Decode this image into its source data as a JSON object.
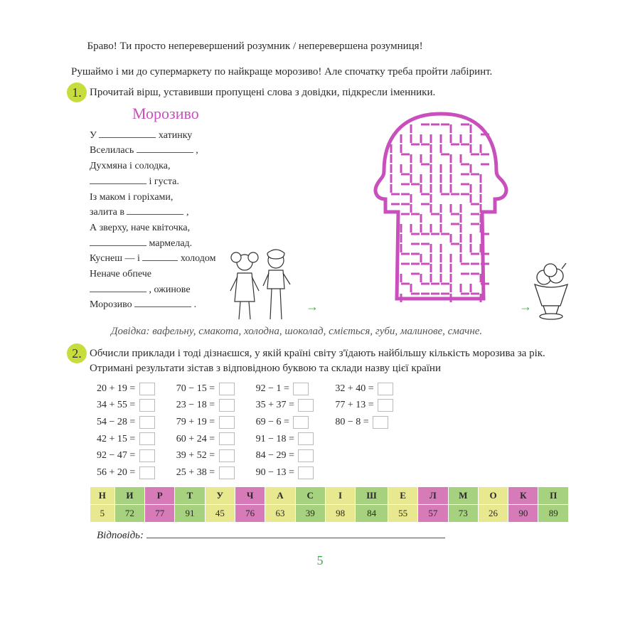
{
  "intro1": "Браво! Ти просто неперевершений розумник / неперевершена розумниця!",
  "intro2": "Рушаймо і ми до супермаркету по найкраще морозиво! Але спочатку треба пройти лабіринт.",
  "task1": {
    "num": "1.",
    "text": "Прочитай вірш, уставивши пропущені слова з довідки, підкресли іменники.",
    "title": "Морозиво",
    "lines": [
      {
        "pre": "У ",
        "blank": 80,
        "post": " хатинку"
      },
      {
        "pre": "Вселилась ",
        "blank": 80,
        "post": " ,"
      },
      {
        "pre": "Духмяна і солодка,",
        "blank": 0,
        "post": ""
      },
      {
        "pre": "",
        "blank": 80,
        "post": " і густа."
      },
      {
        "pre": "Із маком і горіхами,",
        "blank": 0,
        "post": ""
      },
      {
        "pre": "залита в ",
        "blank": 80,
        "post": " ,"
      },
      {
        "pre": "А зверху, наче квіточка,",
        "blank": 0,
        "post": ""
      },
      {
        "pre": "",
        "blank": 80,
        "post": " мармелад."
      },
      {
        "pre": "Куснеш — і ",
        "blank": 50,
        "post": " холодом"
      },
      {
        "pre": "Неначе обпече",
        "blank": 0,
        "post": ""
      },
      {
        "pre": "",
        "blank": 80,
        "post": " , ожинове"
      },
      {
        "pre": "Морозиво ",
        "blank": 80,
        "post": " ."
      }
    ],
    "hint_label": "Довідка:",
    "hint_text": " вафельну, смакота, холодна, шоколад, сміється, губи, малинове, смачне."
  },
  "task2": {
    "num": "2.",
    "text": "Обчисли приклади і тоді дізнаєшся, у якій країні світу з'їдають найбільшу кількість морозива за рік. Отримані результати зістав з відповідною буквою та склади назву цієї країни",
    "cols": [
      [
        "20 + 19 =",
        "34 + 55 =",
        "54 − 28 =",
        "42 + 15 =",
        "92 − 47 =",
        "56 + 20 ="
      ],
      [
        "70 − 15 =",
        "23 − 18 =",
        "79 + 19 =",
        "60 + 24 =",
        "39 + 52 =",
        "25 + 38 ="
      ],
      [
        "92 − 1 =",
        "35 + 37 =",
        "69 − 6 =",
        "91 − 18 =",
        "84 − 29 =",
        "90 − 13 ="
      ],
      [
        "32 + 40 =",
        "77 + 13 =",
        "80 − 8 ="
      ]
    ]
  },
  "cipher": {
    "letters": [
      "Н",
      "И",
      "Р",
      "Т",
      "У",
      "Ч",
      "А",
      "С",
      "І",
      "Ш",
      "Е",
      "Л",
      "М",
      "О",
      "К",
      "П"
    ],
    "nums": [
      "5",
      "72",
      "77",
      "91",
      "45",
      "76",
      "63",
      "39",
      "98",
      "84",
      "55",
      "57",
      "73",
      "26",
      "90",
      "89"
    ],
    "colors": [
      "#e7e88f",
      "#a6d17e",
      "#d67ab8",
      "#a6d17e",
      "#e7e88f",
      "#d67ab8",
      "#e7e88f",
      "#a6d17e",
      "#e7e88f",
      "#a6d17e",
      "#e7e88f",
      "#d67ab8",
      "#a6d17e",
      "#e7e88f",
      "#d67ab8",
      "#a6d17e"
    ]
  },
  "answer_label": "Відповідь:",
  "page": "5",
  "maze_color": "#c94fbd"
}
